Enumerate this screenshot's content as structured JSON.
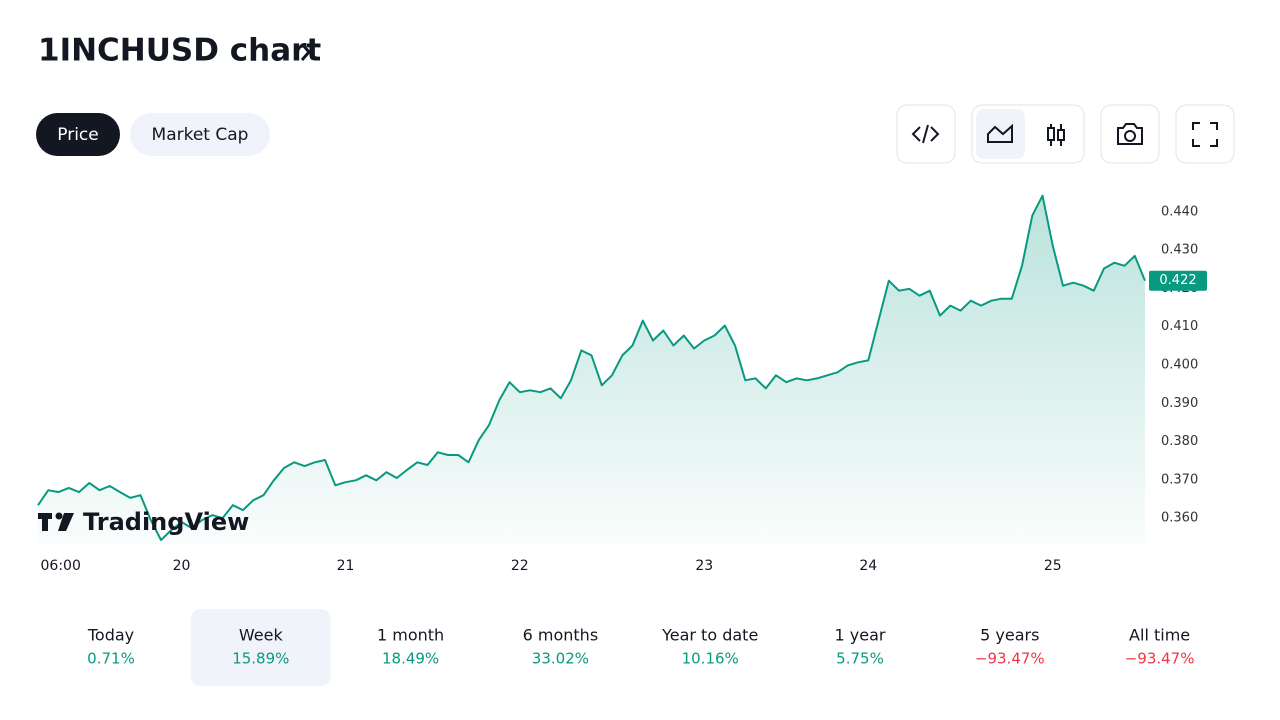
{
  "header": {
    "title": "1INCHUSD chart"
  },
  "tabs": {
    "items": [
      "Price",
      "Market Cap"
    ],
    "selected": 0
  },
  "chart_data": {
    "type": "area",
    "color": "#089981",
    "categories": [
      null,
      null,
      "06:00",
      null,
      null,
      null,
      null,
      null,
      null,
      null,
      null,
      null,
      null,
      null,
      "20",
      null,
      null,
      null,
      null,
      null,
      null,
      null,
      null,
      null,
      null,
      null,
      null,
      null,
      null,
      null,
      "21",
      null,
      null,
      null,
      null,
      null,
      null,
      null,
      null,
      null,
      null,
      null,
      null,
      null,
      null,
      null,
      null,
      "22",
      null,
      null,
      null,
      null,
      null,
      null,
      null,
      null,
      null,
      null,
      null,
      null,
      null,
      null,
      null,
      null,
      null,
      "23",
      null,
      null,
      null,
      null,
      null,
      null,
      null,
      null,
      null,
      null,
      null,
      null,
      null,
      null,
      null,
      "24",
      null,
      null,
      null,
      null,
      null,
      null,
      null,
      null,
      null,
      null,
      null,
      null,
      null,
      null,
      null,
      null,
      null,
      "25",
      null,
      null,
      null,
      null,
      null,
      null,
      null,
      null,
      null
    ],
    "values": [
      0.3634,
      0.3673,
      0.3668,
      0.3679,
      0.3668,
      0.3692,
      0.3673,
      0.3684,
      0.3668,
      0.3653,
      0.366,
      0.3595,
      0.3543,
      0.3569,
      0.359,
      0.3574,
      0.3595,
      0.3608,
      0.36,
      0.3634,
      0.3621,
      0.3647,
      0.366,
      0.3699,
      0.3731,
      0.3746,
      0.3736,
      0.3746,
      0.3752,
      0.3686,
      0.3694,
      0.3699,
      0.3712,
      0.3699,
      0.372,
      0.3705,
      0.3726,
      0.3746,
      0.3739,
      0.3772,
      0.3765,
      0.3765,
      0.3746,
      0.3804,
      0.3843,
      0.3908,
      0.3955,
      0.3929,
      0.3934,
      0.3929,
      0.3939,
      0.3913,
      0.396,
      0.4038,
      0.4025,
      0.3947,
      0.3973,
      0.4025,
      0.4051,
      0.4116,
      0.4064,
      0.409,
      0.4051,
      0.4077,
      0.4043,
      0.4064,
      0.4077,
      0.4103,
      0.4051,
      0.396,
      0.3965,
      0.3939,
      0.3973,
      0.3955,
      0.3965,
      0.396,
      0.3965,
      0.3973,
      0.3981,
      0.3999,
      0.4007,
      0.4012,
      0.4116,
      0.422,
      0.4194,
      0.4199,
      0.4181,
      0.4194,
      0.4129,
      0.4155,
      0.4142,
      0.4168,
      0.4155,
      0.4168,
      0.4173,
      0.4173,
      0.4259,
      0.439,
      0.4442,
      0.4311,
      0.4207,
      0.4215,
      0.4207,
      0.4194,
      0.4252,
      0.4267,
      0.4259,
      0.4285,
      0.422
    ],
    "last_price_label": "0.422",
    "ylim": [
      0.353,
      0.447
    ],
    "yticks": [
      {
        "value": 0.36,
        "label": "0.360"
      },
      {
        "value": 0.37,
        "label": "0.370"
      },
      {
        "value": 0.38,
        "label": "0.380"
      },
      {
        "value": 0.39,
        "label": "0.390"
      },
      {
        "value": 0.4,
        "label": "0.400"
      },
      {
        "value": 0.41,
        "label": "0.410"
      },
      {
        "value": 0.42,
        "label": "0.420"
      },
      {
        "value": 0.43,
        "label": "0.430"
      },
      {
        "value": 0.44,
        "label": "0.440"
      }
    ],
    "grid": false,
    "watermark": "TradingView"
  },
  "periods": {
    "selected": 1,
    "items": [
      {
        "label": "Today",
        "change": "0.71%"
      },
      {
        "label": "Week",
        "change": "15.89%"
      },
      {
        "label": "1 month",
        "change": "18.49%"
      },
      {
        "label": "6 months",
        "change": "33.02%"
      },
      {
        "label": "Year to date",
        "change": "10.16%"
      },
      {
        "label": "1 year",
        "change": "5.75%"
      },
      {
        "label": "5 years",
        "change": "−93.47%"
      },
      {
        "label": "All time",
        "change": "−93.47%"
      }
    ]
  }
}
